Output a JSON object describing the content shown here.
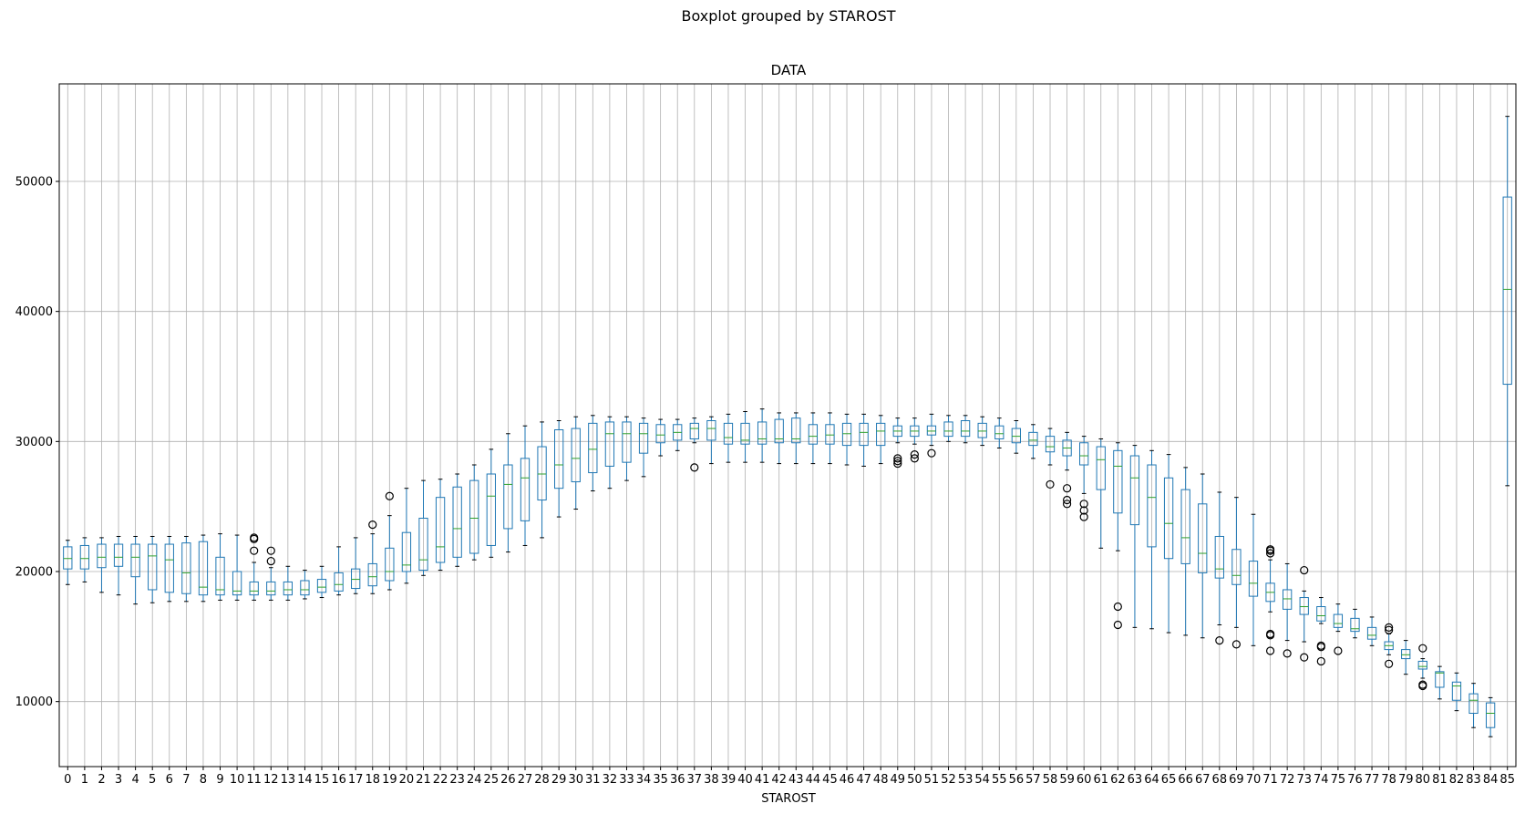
{
  "chart_data": {
    "type": "boxplot",
    "suptitle": "Boxplot grouped by STAROST",
    "title": "DATA",
    "xlabel": "STAROST",
    "ylabel": "",
    "ylim": [
      5000,
      57500
    ],
    "yticks": [
      10000,
      20000,
      30000,
      40000,
      50000
    ],
    "grid": true,
    "categories": [
      "0",
      "1",
      "2",
      "3",
      "4",
      "5",
      "6",
      "7",
      "8",
      "9",
      "10",
      "11",
      "12",
      "13",
      "14",
      "15",
      "16",
      "17",
      "18",
      "19",
      "20",
      "21",
      "22",
      "23",
      "24",
      "25",
      "26",
      "27",
      "28",
      "29",
      "30",
      "31",
      "32",
      "33",
      "34",
      "35",
      "36",
      "37",
      "38",
      "39",
      "40",
      "41",
      "42",
      "43",
      "44",
      "45",
      "46",
      "47",
      "48",
      "49",
      "50",
      "51",
      "52",
      "53",
      "54",
      "55",
      "56",
      "57",
      "58",
      "59",
      "60",
      "61",
      "62",
      "63",
      "64",
      "65",
      "66",
      "67",
      "68",
      "69",
      "70",
      "71",
      "72",
      "73",
      "74",
      "75",
      "76",
      "77",
      "78",
      "79",
      "80",
      "81",
      "82",
      "83",
      "84",
      "85"
    ],
    "boxes": [
      {
        "min": 19000,
        "q1": 20200,
        "median": 21000,
        "q3": 21900,
        "max": 22400,
        "fliers": []
      },
      {
        "min": 19200,
        "q1": 20200,
        "median": 21000,
        "q3": 22000,
        "max": 22600,
        "fliers": []
      },
      {
        "min": 18400,
        "q1": 20300,
        "median": 21100,
        "q3": 22100,
        "max": 22600,
        "fliers": []
      },
      {
        "min": 18200,
        "q1": 20400,
        "median": 21100,
        "q3": 22100,
        "max": 22700,
        "fliers": []
      },
      {
        "min": 17500,
        "q1": 19600,
        "median": 21100,
        "q3": 22100,
        "max": 22700,
        "fliers": []
      },
      {
        "min": 17600,
        "q1": 18600,
        "median": 21200,
        "q3": 22100,
        "max": 22700,
        "fliers": []
      },
      {
        "min": 17700,
        "q1": 18400,
        "median": 20900,
        "q3": 22100,
        "max": 22700,
        "fliers": []
      },
      {
        "min": 17700,
        "q1": 18300,
        "median": 19900,
        "q3": 22200,
        "max": 22700,
        "fliers": []
      },
      {
        "min": 17700,
        "q1": 18200,
        "median": 18800,
        "q3": 22300,
        "max": 22800,
        "fliers": []
      },
      {
        "min": 17800,
        "q1": 18200,
        "median": 18600,
        "q3": 21100,
        "max": 22900,
        "fliers": []
      },
      {
        "min": 17800,
        "q1": 18200,
        "median": 18500,
        "q3": 20000,
        "max": 22800,
        "fliers": []
      },
      {
        "min": 17800,
        "q1": 18200,
        "median": 18500,
        "q3": 19200,
        "max": 20700,
        "fliers": [
          21600,
          22500,
          22600
        ]
      },
      {
        "min": 17800,
        "q1": 18200,
        "median": 18500,
        "q3": 19200,
        "max": 20300,
        "fliers": [
          20800,
          21600
        ]
      },
      {
        "min": 17800,
        "q1": 18200,
        "median": 18600,
        "q3": 19200,
        "max": 20400,
        "fliers": []
      },
      {
        "min": 17900,
        "q1": 18200,
        "median": 18600,
        "q3": 19300,
        "max": 20100,
        "fliers": []
      },
      {
        "min": 18000,
        "q1": 18400,
        "median": 18800,
        "q3": 19400,
        "max": 20400,
        "fliers": []
      },
      {
        "min": 18200,
        "q1": 18500,
        "median": 19000,
        "q3": 19900,
        "max": 21900,
        "fliers": []
      },
      {
        "min": 18300,
        "q1": 18700,
        "median": 19400,
        "q3": 20200,
        "max": 22600,
        "fliers": []
      },
      {
        "min": 18300,
        "q1": 18900,
        "median": 19600,
        "q3": 20600,
        "max": 22900,
        "fliers": [
          23600
        ]
      },
      {
        "min": 18600,
        "q1": 19300,
        "median": 20000,
        "q3": 21800,
        "max": 24300,
        "fliers": [
          25800
        ]
      },
      {
        "min": 19100,
        "q1": 20000,
        "median": 20500,
        "q3": 23000,
        "max": 26400,
        "fliers": []
      },
      {
        "min": 19700,
        "q1": 20100,
        "median": 20900,
        "q3": 24100,
        "max": 27000,
        "fliers": []
      },
      {
        "min": 20100,
        "q1": 20700,
        "median": 21900,
        "q3": 25700,
        "max": 27100,
        "fliers": []
      },
      {
        "min": 20400,
        "q1": 21100,
        "median": 23300,
        "q3": 26500,
        "max": 27500,
        "fliers": []
      },
      {
        "min": 20900,
        "q1": 21400,
        "median": 24100,
        "q3": 27000,
        "max": 28200,
        "fliers": []
      },
      {
        "min": 21100,
        "q1": 22000,
        "median": 25800,
        "q3": 27500,
        "max": 29400,
        "fliers": []
      },
      {
        "min": 21500,
        "q1": 23300,
        "median": 26700,
        "q3": 28200,
        "max": 30600,
        "fliers": []
      },
      {
        "min": 22000,
        "q1": 23900,
        "median": 27200,
        "q3": 28700,
        "max": 31200,
        "fliers": []
      },
      {
        "min": 22600,
        "q1": 25500,
        "median": 27500,
        "q3": 29600,
        "max": 31500,
        "fliers": []
      },
      {
        "min": 24200,
        "q1": 26400,
        "median": 28200,
        "q3": 30900,
        "max": 31600,
        "fliers": []
      },
      {
        "min": 24800,
        "q1": 26900,
        "median": 28700,
        "q3": 31000,
        "max": 31900,
        "fliers": []
      },
      {
        "min": 26200,
        "q1": 27600,
        "median": 29400,
        "q3": 31400,
        "max": 32000,
        "fliers": []
      },
      {
        "min": 26400,
        "q1": 28100,
        "median": 30600,
        "q3": 31500,
        "max": 31900,
        "fliers": []
      },
      {
        "min": 27000,
        "q1": 28400,
        "median": 30600,
        "q3": 31500,
        "max": 31900,
        "fliers": []
      },
      {
        "min": 27300,
        "q1": 29100,
        "median": 30600,
        "q3": 31400,
        "max": 31800,
        "fliers": []
      },
      {
        "min": 28900,
        "q1": 29900,
        "median": 30500,
        "q3": 31300,
        "max": 31700,
        "fliers": []
      },
      {
        "min": 29300,
        "q1": 30100,
        "median": 30700,
        "q3": 31300,
        "max": 31700,
        "fliers": []
      },
      {
        "min": 29900,
        "q1": 30200,
        "median": 31000,
        "q3": 31400,
        "max": 31800,
        "fliers": [
          28000
        ]
      },
      {
        "min": 28300,
        "q1": 30100,
        "median": 31000,
        "q3": 31600,
        "max": 31900,
        "fliers": []
      },
      {
        "min": 28400,
        "q1": 29800,
        "median": 30300,
        "q3": 31400,
        "max": 32100,
        "fliers": []
      },
      {
        "min": 28400,
        "q1": 29800,
        "median": 30100,
        "q3": 31400,
        "max": 32300,
        "fliers": []
      },
      {
        "min": 28400,
        "q1": 29800,
        "median": 30200,
        "q3": 31500,
        "max": 32500,
        "fliers": []
      },
      {
        "min": 28300,
        "q1": 29900,
        "median": 30200,
        "q3": 31700,
        "max": 32200,
        "fliers": []
      },
      {
        "min": 28300,
        "q1": 29900,
        "median": 30200,
        "q3": 31800,
        "max": 32200,
        "fliers": []
      },
      {
        "min": 28300,
        "q1": 29800,
        "median": 30400,
        "q3": 31300,
        "max": 32200,
        "fliers": []
      },
      {
        "min": 28300,
        "q1": 29800,
        "median": 30500,
        "q3": 31300,
        "max": 32200,
        "fliers": []
      },
      {
        "min": 28200,
        "q1": 29700,
        "median": 30600,
        "q3": 31400,
        "max": 32100,
        "fliers": []
      },
      {
        "min": 28100,
        "q1": 29700,
        "median": 30700,
        "q3": 31400,
        "max": 32100,
        "fliers": []
      },
      {
        "min": 28300,
        "q1": 29700,
        "median": 30800,
        "q3": 31400,
        "max": 32000,
        "fliers": []
      },
      {
        "min": 29900,
        "q1": 30400,
        "median": 30800,
        "q3": 31200,
        "max": 31800,
        "fliers": [
          28300,
          28500,
          28700
        ]
      },
      {
        "min": 29800,
        "q1": 30400,
        "median": 30800,
        "q3": 31200,
        "max": 31800,
        "fliers": [
          28700,
          29000
        ]
      },
      {
        "min": 29700,
        "q1": 30500,
        "median": 30800,
        "q3": 31200,
        "max": 32100,
        "fliers": [
          29100
        ]
      },
      {
        "min": 30000,
        "q1": 30400,
        "median": 30800,
        "q3": 31500,
        "max": 32000,
        "fliers": []
      },
      {
        "min": 29900,
        "q1": 30400,
        "median": 30800,
        "q3": 31600,
        "max": 32000,
        "fliers": []
      },
      {
        "min": 29700,
        "q1": 30300,
        "median": 30800,
        "q3": 31400,
        "max": 31900,
        "fliers": []
      },
      {
        "min": 29500,
        "q1": 30200,
        "median": 30600,
        "q3": 31200,
        "max": 31800,
        "fliers": []
      },
      {
        "min": 29100,
        "q1": 29900,
        "median": 30400,
        "q3": 31000,
        "max": 31600,
        "fliers": []
      },
      {
        "min": 28700,
        "q1": 29700,
        "median": 30100,
        "q3": 30700,
        "max": 31300,
        "fliers": []
      },
      {
        "min": 28200,
        "q1": 29200,
        "median": 29600,
        "q3": 30400,
        "max": 31000,
        "fliers": [
          26700
        ]
      },
      {
        "min": 27800,
        "q1": 28900,
        "median": 29500,
        "q3": 30100,
        "max": 30700,
        "fliers": [
          25200,
          25500,
          26400
        ]
      },
      {
        "min": 26000,
        "q1": 28200,
        "median": 28900,
        "q3": 29900,
        "max": 30400,
        "fliers": [
          24200,
          24700,
          25200
        ]
      },
      {
        "min": 21800,
        "q1": 26300,
        "median": 28600,
        "q3": 29600,
        "max": 30200,
        "fliers": []
      },
      {
        "min": 21600,
        "q1": 24500,
        "median": 28100,
        "q3": 29300,
        "max": 29900,
        "fliers": [
          15900,
          17300
        ]
      },
      {
        "min": 15700,
        "q1": 23600,
        "median": 27200,
        "q3": 28900,
        "max": 29700,
        "fliers": []
      },
      {
        "min": 15600,
        "q1": 21900,
        "median": 25700,
        "q3": 28200,
        "max": 29300,
        "fliers": []
      },
      {
        "min": 15300,
        "q1": 21000,
        "median": 23700,
        "q3": 27200,
        "max": 29000,
        "fliers": []
      },
      {
        "min": 15100,
        "q1": 20600,
        "median": 22600,
        "q3": 26300,
        "max": 28000,
        "fliers": []
      },
      {
        "min": 14900,
        "q1": 19900,
        "median": 21400,
        "q3": 25200,
        "max": 27500,
        "fliers": []
      },
      {
        "min": 15900,
        "q1": 19500,
        "median": 20200,
        "q3": 22700,
        "max": 26100,
        "fliers": [
          14700
        ]
      },
      {
        "min": 15700,
        "q1": 19000,
        "median": 19700,
        "q3": 21700,
        "max": 25700,
        "fliers": [
          14400
        ]
      },
      {
        "min": 14300,
        "q1": 18100,
        "median": 19100,
        "q3": 20800,
        "max": 24400,
        "fliers": []
      },
      {
        "min": 16900,
        "q1": 17700,
        "median": 18400,
        "q3": 19100,
        "max": 20900,
        "fliers": [
          13900,
          15100,
          15200,
          21400,
          21600,
          21700
        ]
      },
      {
        "min": 14700,
        "q1": 17100,
        "median": 17900,
        "q3": 18600,
        "max": 20600,
        "fliers": [
          13700
        ]
      },
      {
        "min": 14600,
        "q1": 16700,
        "median": 17300,
        "q3": 18000,
        "max": 18500,
        "fliers": [
          13400,
          20100
        ]
      },
      {
        "min": 16000,
        "q1": 16200,
        "median": 16600,
        "q3": 17300,
        "max": 18000,
        "fliers": [
          13100,
          14200,
          14300
        ]
      },
      {
        "min": 15400,
        "q1": 15700,
        "median": 16000,
        "q3": 16700,
        "max": 17500,
        "fliers": [
          13900
        ]
      },
      {
        "min": 14900,
        "q1": 15400,
        "median": 15600,
        "q3": 16400,
        "max": 17100,
        "fliers": []
      },
      {
        "min": 14300,
        "q1": 14800,
        "median": 15100,
        "q3": 15700,
        "max": 16500,
        "fliers": []
      },
      {
        "min": 13600,
        "q1": 14000,
        "median": 14300,
        "q3": 14600,
        "max": 15200,
        "fliers": [
          12900,
          15500,
          15700
        ]
      },
      {
        "min": 12100,
        "q1": 13300,
        "median": 13600,
        "q3": 14000,
        "max": 14700,
        "fliers": []
      },
      {
        "min": 11800,
        "q1": 12500,
        "median": 12700,
        "q3": 13100,
        "max": 13300,
        "fliers": [
          11200,
          11300,
          14100
        ]
      },
      {
        "min": 10200,
        "q1": 11100,
        "median": 12200,
        "q3": 12300,
        "max": 12700,
        "fliers": []
      },
      {
        "min": 9300,
        "q1": 10100,
        "median": 11200,
        "q3": 11500,
        "max": 12200,
        "fliers": []
      },
      {
        "min": 8000,
        "q1": 9100,
        "median": 10100,
        "q3": 10600,
        "max": 11400,
        "fliers": []
      },
      {
        "min": 7300,
        "q1": 8000,
        "median": 9100,
        "q3": 9900,
        "max": 10300,
        "fliers": []
      },
      {
        "min": 26600,
        "q1": 34400,
        "median": 41700,
        "q3": 48800,
        "max": 55000,
        "fliers": []
      }
    ]
  }
}
